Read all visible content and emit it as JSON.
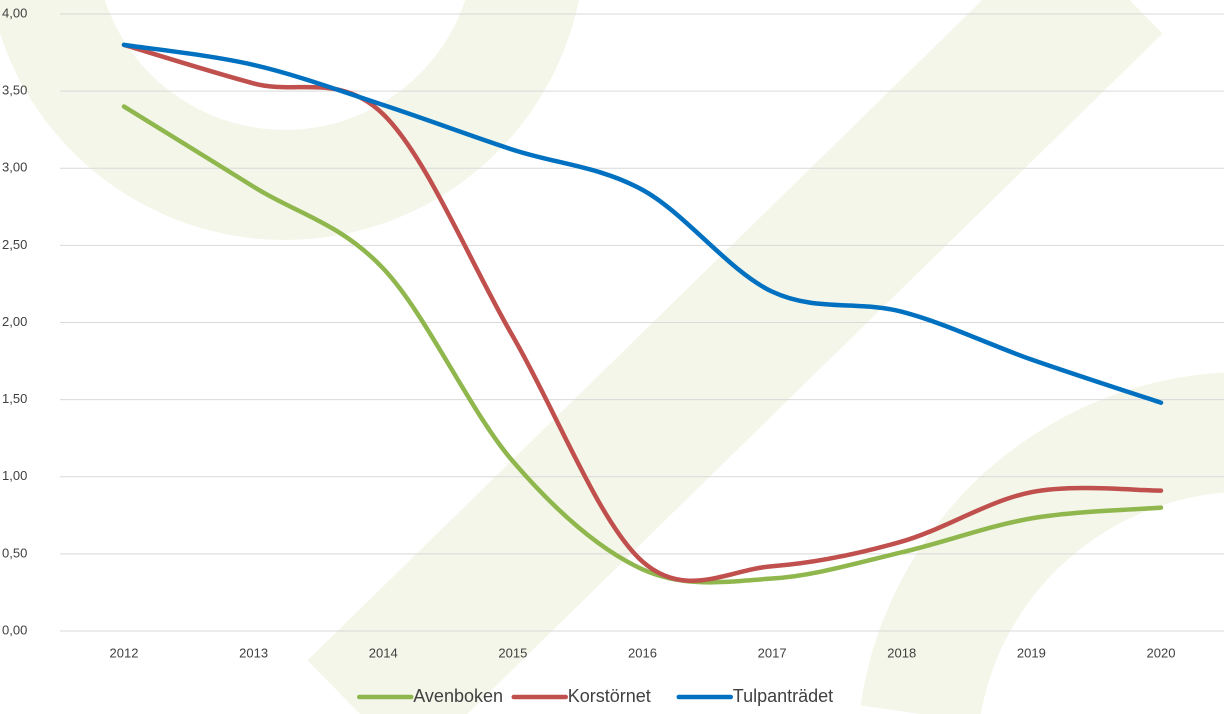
{
  "chart_data": {
    "type": "line",
    "categories": [
      "2012",
      "2013",
      "2014",
      "2015",
      "2016",
      "2017",
      "2018",
      "2019",
      "2020"
    ],
    "series": [
      {
        "name": "Avenboken",
        "color": "#8fb74d",
        "values": [
          3.4,
          2.88,
          2.35,
          1.1,
          0.4,
          0.34,
          0.51,
          0.73,
          0.8
        ]
      },
      {
        "name": "Korstörnet",
        "color": "#c0504d",
        "values": [
          3.8,
          3.55,
          3.35,
          1.91,
          0.45,
          0.42,
          0.58,
          0.9,
          0.91
        ]
      },
      {
        "name": "Tulpanträdet",
        "color": "#0070c0",
        "values": [
          3.8,
          3.67,
          3.41,
          3.12,
          2.86,
          2.2,
          2.07,
          1.76,
          1.48
        ]
      }
    ],
    "ylim": [
      0,
      4
    ],
    "yticks": [
      {
        "value": 0,
        "label": "0,00"
      },
      {
        "value": 0.5,
        "label": "0,50"
      },
      {
        "value": 1,
        "label": "1,00"
      },
      {
        "value": 1.5,
        "label": "1,50"
      },
      {
        "value": 2,
        "label": "2,00"
      },
      {
        "value": 2.5,
        "label": "2,50"
      },
      {
        "value": 3,
        "label": "3,00"
      },
      {
        "value": 3.5,
        "label": "3,50"
      },
      {
        "value": 4,
        "label": "4,00"
      }
    ],
    "grid": true,
    "legend": "bottom",
    "smooth": true
  }
}
